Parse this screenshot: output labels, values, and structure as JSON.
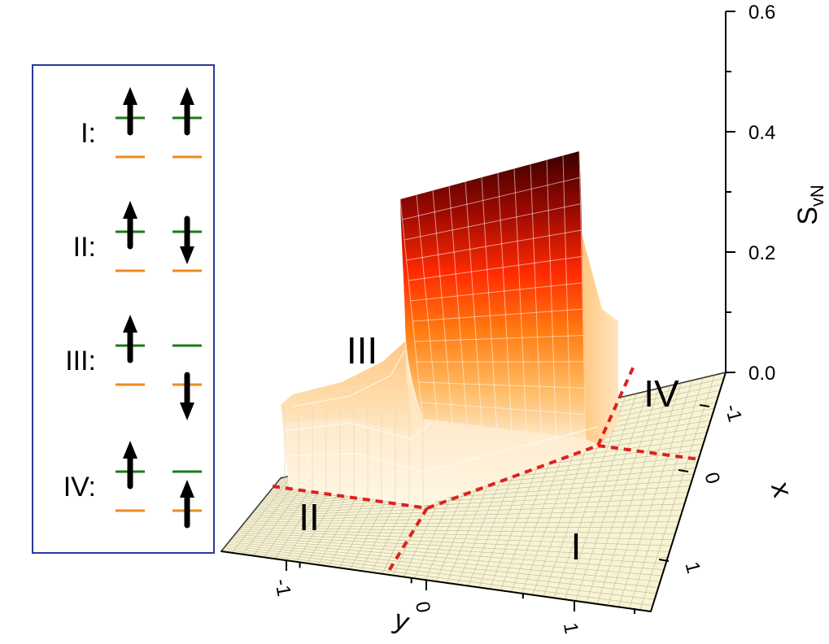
{
  "chart_data": {
    "type": "surface3d",
    "z_axis": {
      "label": "S",
      "label_subscript": "vN",
      "range": [
        0.0,
        0.6
      ],
      "ticks": [
        "0.0",
        "0.2",
        "0.4",
        "0.6"
      ]
    },
    "x_axis": {
      "label": "x",
      "ticks": [
        "-1",
        "0",
        "1"
      ]
    },
    "y_axis": {
      "label": "y",
      "ticks": [
        "-1",
        "0",
        "1"
      ]
    },
    "surface_regions": [
      {
        "region": "I",
        "value_min": 0.0,
        "value_max": 0.0
      },
      {
        "region": "II",
        "value_min": 0.0,
        "value_max": 0.12
      },
      {
        "region": "III",
        "value_min": 0.12,
        "value_max": 0.3
      },
      {
        "region": "IV",
        "value_min": 0.0,
        "value_max": 0.0
      }
    ],
    "region_labels": [
      "I",
      "II",
      "III",
      "IV"
    ],
    "boundary_color": "#e02020",
    "colormap": [
      "#fffbe8",
      "#ffd9a0",
      "#ff9a2a",
      "#ff2a00",
      "#c01000",
      "#3a0000"
    ],
    "floor_color": "#f8f3d2",
    "legend": {
      "border_color": "#2a3a9a",
      "rows": [
        {
          "label": "I:",
          "site1": "up",
          "site2": "up"
        },
        {
          "label": "II:",
          "site1": "up",
          "site2": "down"
        },
        {
          "label": "III:",
          "site1": "up",
          "site2": "down-lower"
        },
        {
          "label": "IV:",
          "site1": "up",
          "site2": "up-lower"
        }
      ],
      "upper_level_color": "#1a7a1a",
      "lower_level_color": "#f08a20"
    }
  }
}
